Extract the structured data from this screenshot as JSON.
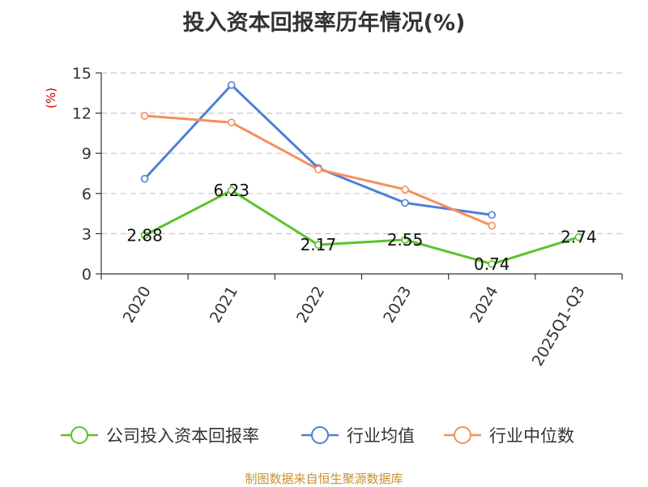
{
  "page": {
    "title": "投入资本回报率历年情况(%)",
    "source": "制图数据来自恒生聚源数据库"
  },
  "chart_data": {
    "type": "line",
    "title": "投入资本回报率历年情况(%)",
    "ylabel": "(%)",
    "xlabel": "",
    "categories": [
      "2020",
      "2021",
      "2022",
      "2023",
      "2024",
      "2025Q1-Q3"
    ],
    "ylim": [
      0,
      15
    ],
    "yticks": [
      0,
      3,
      6,
      9,
      12,
      15
    ],
    "grid": true,
    "legend_position": "bottom",
    "series": [
      {
        "name": "公司投入资本回报率",
        "color": "#5cc22c",
        "values": [
          2.88,
          6.23,
          2.17,
          2.55,
          0.74,
          2.74
        ],
        "labels": [
          "2.88",
          "6.23",
          "2.17",
          "2.55",
          "0.74",
          "2.74"
        ]
      },
      {
        "name": "行业均值",
        "color": "#4f7fd8",
        "values": [
          7.1,
          14.1,
          7.9,
          5.3,
          4.4,
          null
        ]
      },
      {
        "name": "行业中位数",
        "color": "#f58f5c",
        "values": [
          11.8,
          11.3,
          7.8,
          6.3,
          3.6,
          null
        ]
      }
    ]
  }
}
